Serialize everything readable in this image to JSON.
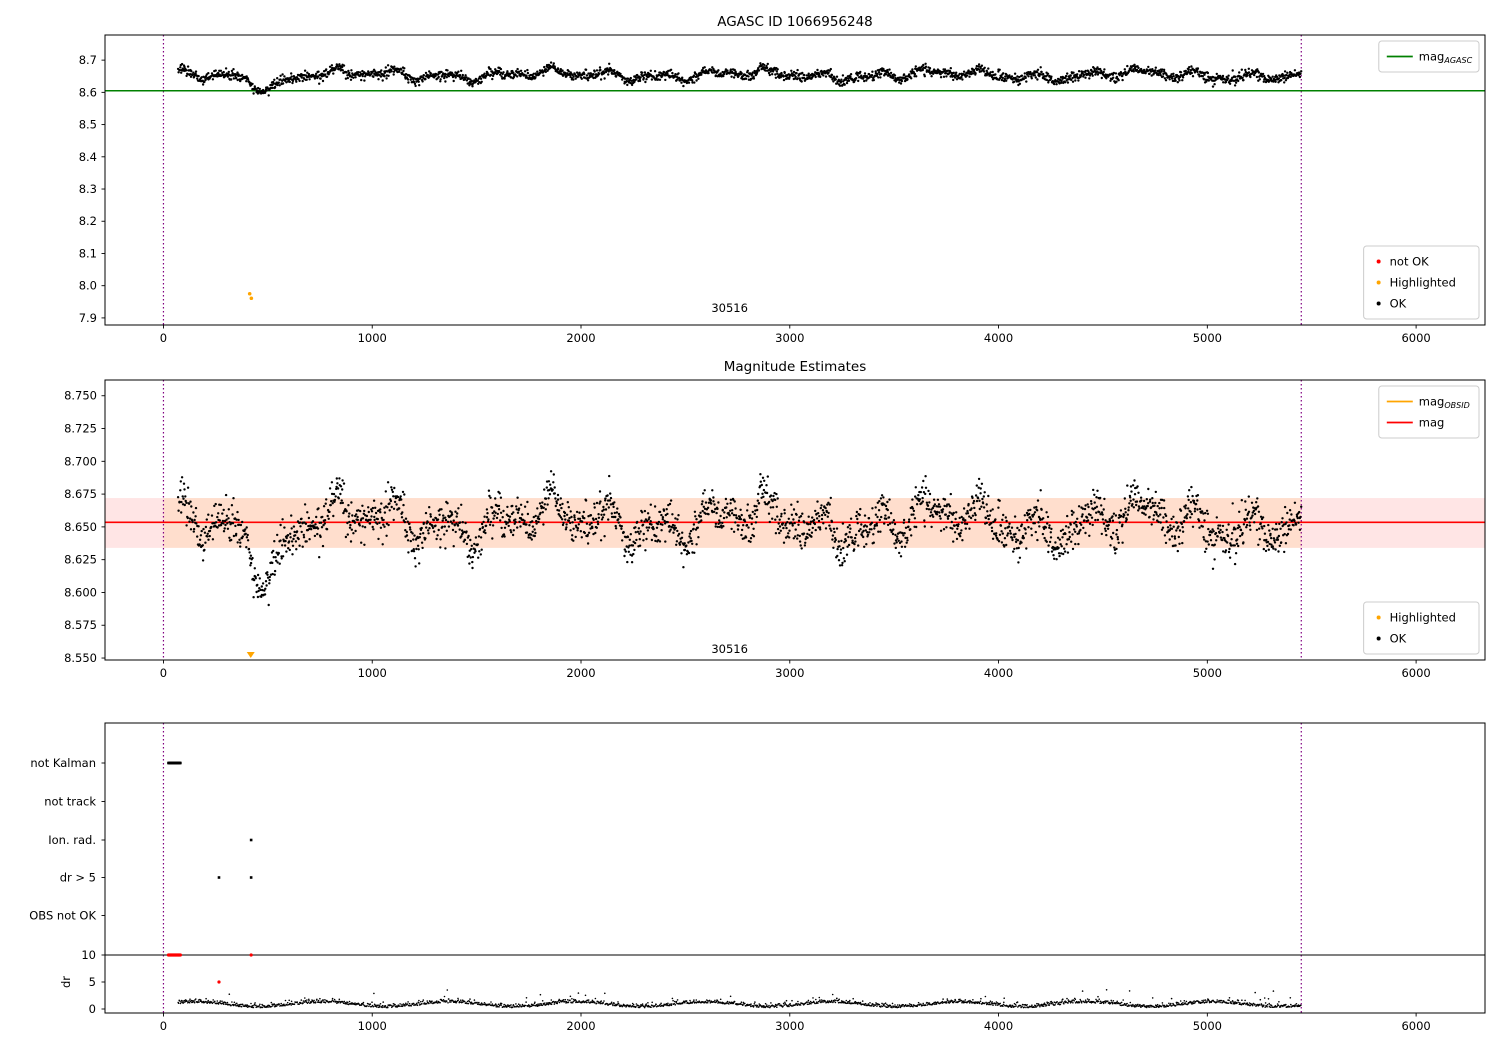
{
  "figure": {
    "background": "#ffffff",
    "text_color": "#000000"
  },
  "chart_data": [
    {
      "type": "scatter",
      "id": "agasc_mag",
      "title": "AGASC ID 1066956248",
      "xlim": [
        -280,
        6330
      ],
      "ylim": [
        7.878,
        8.778
      ],
      "xticks": [
        {
          "v": 0,
          "label": "0"
        },
        {
          "v": 1000,
          "label": "1000"
        },
        {
          "v": 2000,
          "label": "2000"
        },
        {
          "v": 3000,
          "label": "3000"
        },
        {
          "v": 4000,
          "label": "4000"
        },
        {
          "v": 5000,
          "label": "5000"
        },
        {
          "v": 6000,
          "label": "6000"
        }
      ],
      "yticks": [
        {
          "v": 7.9,
          "label": "7.9"
        },
        {
          "v": 8.0,
          "label": "8.0"
        },
        {
          "v": 8.1,
          "label": "8.1"
        },
        {
          "v": 8.2,
          "label": "8.2"
        },
        {
          "v": 8.3,
          "label": "8.3"
        },
        {
          "v": 8.4,
          "label": "8.4"
        },
        {
          "v": 8.5,
          "label": "8.5"
        },
        {
          "v": 8.6,
          "label": "8.6"
        },
        {
          "v": 8.7,
          "label": "8.7"
        }
      ],
      "mag_agasc_line": {
        "y": 8.605,
        "color": "#008000"
      },
      "obs_boundaries": {
        "xs": [
          0,
          5450
        ],
        "color": "#800080"
      },
      "obsid_annotation": {
        "text": "30516",
        "x": 2712,
        "y": 7.918
      },
      "legend_lines": {
        "items": [
          {
            "label": "mag",
            "subscript": "AGASC",
            "color": "#008000"
          }
        ]
      },
      "legend_markers": {
        "items": [
          {
            "label": "not OK",
            "color": "#ff0000"
          },
          {
            "label": "Highlighted",
            "color": "#ffa500"
          },
          {
            "label": "OK",
            "color": "#000000"
          }
        ]
      },
      "highlighted_points": {
        "color": "#ffa500",
        "points": [
          [
            413,
            7.975
          ],
          [
            421,
            7.961
          ]
        ]
      },
      "ok_series": {
        "color": "#000000",
        "seed": 20240731,
        "n": 2400,
        "x_range": [
          70,
          5450
        ],
        "mean": 8.654,
        "components": [
          {
            "amp": 0.01,
            "period": 257
          },
          {
            "amp": 0.008,
            "period": 941
          },
          {
            "amp": 0.006,
            "period": 146
          }
        ],
        "noise_sigma": 0.0075,
        "dip": {
          "center": 500,
          "sigma": 68,
          "depth": 0.034
        }
      }
    },
    {
      "type": "scatter",
      "id": "magnitude_estimates",
      "title": "Magnitude Estimates",
      "xlim": [
        -280,
        6330
      ],
      "ylim": [
        8.5485,
        8.762
      ],
      "xticks": [
        {
          "v": 0,
          "label": "0"
        },
        {
          "v": 1000,
          "label": "1000"
        },
        {
          "v": 2000,
          "label": "2000"
        },
        {
          "v": 3000,
          "label": "3000"
        },
        {
          "v": 4000,
          "label": "4000"
        },
        {
          "v": 5000,
          "label": "5000"
        },
        {
          "v": 6000,
          "label": "6000"
        }
      ],
      "yticks": [
        {
          "v": 8.55,
          "label": "8.550"
        },
        {
          "v": 8.575,
          "label": "8.575"
        },
        {
          "v": 8.6,
          "label": "8.600"
        },
        {
          "v": 8.625,
          "label": "8.625"
        },
        {
          "v": 8.65,
          "label": "8.650"
        },
        {
          "v": 8.675,
          "label": "8.675"
        },
        {
          "v": 8.7,
          "label": "8.700"
        },
        {
          "v": 8.725,
          "label": "8.725"
        },
        {
          "v": 8.75,
          "label": "8.750"
        }
      ],
      "mag_line": {
        "y": 8.6535,
        "color": "#ff0000"
      },
      "mag_band": {
        "y1": 8.634,
        "y2": 8.672,
        "color": "#ff0000",
        "alpha": 0.1
      },
      "obsid_band": {
        "x1": 0,
        "x2": 5450,
        "y1": 8.634,
        "y2": 8.672,
        "color": "#ffa500",
        "alpha": 0.1
      },
      "obs_boundaries": {
        "xs": [
          0,
          5450
        ],
        "color": "#800080"
      },
      "obsid_annotation": {
        "text": "30516",
        "x": 2712,
        "y": 8.5538
      },
      "legend_lines": {
        "items": [
          {
            "label": "mag",
            "subscript": "OBSID",
            "color": "#ffa500"
          },
          {
            "label": "mag",
            "subscript": "",
            "color": "#ff0000"
          }
        ]
      },
      "legend_markers": {
        "items": [
          {
            "label": "Highlighted",
            "color": "#ffa500"
          },
          {
            "label": "OK",
            "color": "#000000"
          }
        ]
      },
      "clipped_highlight_marker": {
        "x": 418,
        "color": "#ffa500"
      }
    },
    {
      "type": "flags_dr",
      "id": "flags",
      "xlim": [
        -280,
        6330
      ],
      "xticks": [
        {
          "v": 0,
          "label": "0"
        },
        {
          "v": 1000,
          "label": "1000"
        },
        {
          "v": 2000,
          "label": "2000"
        },
        {
          "v": 3000,
          "label": "3000"
        },
        {
          "v": 4000,
          "label": "4000"
        },
        {
          "v": 5000,
          "label": "5000"
        },
        {
          "v": 6000,
          "label": "6000"
        }
      ],
      "flag_rows": [
        {
          "label": "not Kalman",
          "points_x": [
            24,
            27,
            30,
            33,
            36,
            39,
            42,
            45,
            48,
            51,
            54,
            57,
            60,
            63,
            66,
            69,
            72,
            75,
            78,
            81
          ]
        },
        {
          "label": "not track",
          "points_x": []
        },
        {
          "label": "Ion. rad.",
          "points_x": [
            420
          ]
        },
        {
          "label": "dr > 5",
          "points_x": [
            266,
            420
          ]
        },
        {
          "label": "OBS not OK",
          "points_x": []
        }
      ],
      "dr_axis": {
        "label": "dr",
        "ticks": [
          {
            "v": 10,
            "label": "10"
          },
          {
            "v": 5,
            "label": "5"
          },
          {
            "v": 0,
            "label": "0"
          }
        ],
        "max_line": 10
      },
      "not_ok_points": {
        "color": "#ff0000",
        "at_limit_x": [
          24,
          27,
          30,
          33,
          36,
          39,
          42,
          45,
          48,
          51,
          54,
          57,
          60,
          63,
          66,
          69,
          72,
          75,
          78,
          81,
          420
        ],
        "points": [
          [
            266,
            5
          ]
        ]
      },
      "dr_series": {
        "color": "#000000",
        "seed": 99,
        "n": 2000,
        "x_range": [
          70,
          5450
        ],
        "base": 0.7,
        "amp": 0.45,
        "period": 610,
        "noise": 0.35
      },
      "obs_boundaries": {
        "xs": [
          0,
          5450
        ],
        "color": "#800080"
      }
    }
  ]
}
